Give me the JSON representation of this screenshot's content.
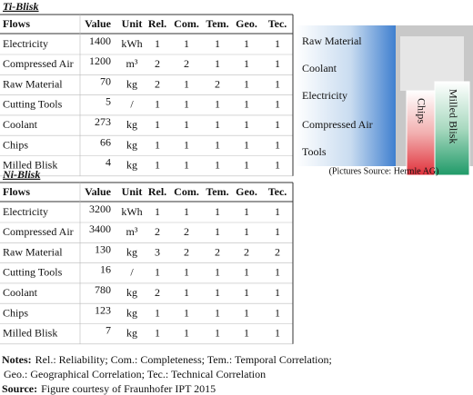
{
  "ti_blisk": {
    "title": "Ti-Blisk",
    "headers": [
      "Flows",
      "Value",
      "Unit",
      "Rel.",
      "Com.",
      "Tem.",
      "Geo.",
      "Tec."
    ],
    "rows": [
      [
        "Electricity",
        1400,
        "kWh",
        1,
        1,
        1,
        1,
        1
      ],
      [
        "Compressed Air",
        1200,
        "m³",
        2,
        2,
        1,
        1,
        1
      ],
      [
        "Raw Material",
        70,
        "kg",
        2,
        1,
        2,
        1,
        1
      ],
      [
        "Cutting Tools",
        5,
        "/",
        1,
        1,
        1,
        1,
        1
      ],
      [
        "Coolant",
        273,
        "kg",
        1,
        1,
        1,
        1,
        1
      ],
      [
        "Chips",
        66,
        "kg",
        1,
        1,
        1,
        1,
        1
      ],
      [
        "Milled Blisk",
        4,
        "kg",
        1,
        1,
        1,
        1,
        1
      ]
    ]
  },
  "ni_blisk": {
    "title": "Ni-Blisk",
    "headers": [
      "Flows",
      "Value",
      "Unit",
      "Rel.",
      "Com.",
      "Tem.",
      "Geo.",
      "Tec."
    ],
    "rows": [
      [
        "Electricity",
        3200,
        "kWh",
        1,
        1,
        1,
        1,
        1
      ],
      [
        "Compressed Air",
        3400,
        "m³",
        2,
        2,
        1,
        1,
        1
      ],
      [
        "Raw Material",
        130,
        "kg",
        3,
        2,
        2,
        2,
        2
      ],
      [
        "Cutting Tools",
        16,
        "/",
        1,
        1,
        1,
        1,
        1
      ],
      [
        "Coolant",
        780,
        "kg",
        2,
        1,
        1,
        1,
        1
      ],
      [
        "Chips",
        123,
        "kg",
        1,
        1,
        1,
        1,
        1
      ],
      [
        "Milled Blisk",
        7,
        "kg",
        1,
        1,
        1,
        1,
        1
      ]
    ]
  },
  "figure": {
    "inputs": [
      "Raw Material",
      "Coolant",
      "Electricity",
      "Compressed Air",
      "Tools"
    ],
    "outputs": [
      "Chips",
      "Milled Blisk"
    ],
    "caption": "(Pictures Source: Hermle AG)"
  },
  "notes": {
    "label": "Notes:",
    "lines": [
      "Rel.: Reliability; Com.: Completeness; Tem.: Temporal Correlation;",
      "Geo.: Geographical Correlation; Tec.: Technical Correlation"
    ]
  },
  "source": {
    "label": "Source:",
    "text": "Figure courtesy of Fraunhofer IPT 2015"
  }
}
